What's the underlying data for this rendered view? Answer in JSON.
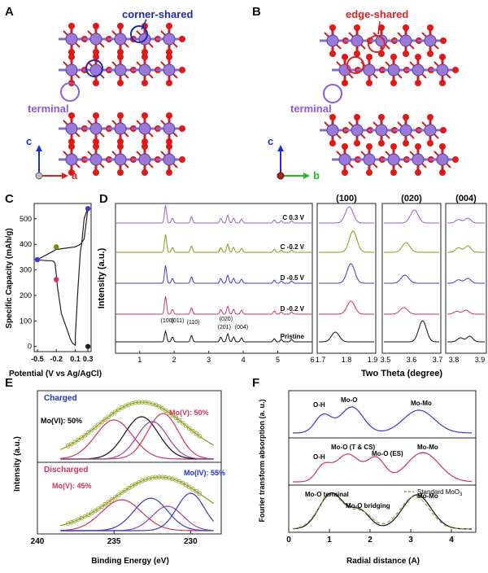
{
  "panels": {
    "A": {
      "letter": "A",
      "annotation": "corner-shared",
      "terminal": "terminal",
      "axis1": "c",
      "axis2": "a"
    },
    "B": {
      "letter": "B",
      "annotation": "edge-shared",
      "terminal": "terminal",
      "axis1": "c",
      "axis2": "b"
    },
    "C": {
      "letter": "C"
    },
    "D": {
      "letter": "D",
      "zoom_titles": [
        "(100)",
        "(020)",
        "(004)"
      ]
    },
    "E": {
      "letter": "E",
      "charged": "Charged",
      "discharged": "Discharged",
      "mo6": "Mo(VI): 50%",
      "mo5_top": "Mo(V): 50%",
      "mo5_bot": "Mo(V): 45%",
      "mo4": "Mo(IV): 55%"
    },
    "F": {
      "letter": "F",
      "oh1": "O-H",
      "moo1": "Mo-O",
      "momo1": "Mo-Mo",
      "oh2": "O-H",
      "moo_tcs": "Mo-O (T & CS)",
      "moo_es": "Mo-O (ES)",
      "momo2": "Mo-Mo",
      "moo_term": "Mo-O terminal",
      "moo_bridge": "Mo-O bridging",
      "momo3": "Mo-Mo",
      "std": "Standard MoO"
    }
  },
  "chart_data": [
    {
      "id": "C",
      "type": "line",
      "xlabel": "Potential (V vs Ag/AgCl)",
      "ylabel": "Specific Capacity (mAh/g)",
      "xticks": [
        "-0.5",
        "-0.2",
        "0.1",
        "0.3"
      ],
      "yticks": [
        "0",
        "100",
        "200",
        "300",
        "400",
        "500"
      ],
      "xlim": [
        -0.55,
        0.35
      ],
      "ylim": [
        -20,
        560
      ],
      "curve": [
        [
          -0.5,
          340
        ],
        [
          -0.44,
          338
        ],
        [
          -0.35,
          336
        ],
        [
          -0.28,
          336
        ],
        [
          -0.24,
          333
        ],
        [
          -0.22,
          325
        ],
        [
          -0.2,
          280
        ],
        [
          -0.18,
          230
        ],
        [
          -0.12,
          130
        ],
        [
          -0.02,
          60
        ],
        [
          0.02,
          30
        ],
        [
          0.06,
          12
        ],
        [
          0.1,
          5
        ],
        [
          0.1,
          40
        ],
        [
          0.14,
          220
        ],
        [
          0.18,
          370
        ],
        [
          0.2,
          400
        ],
        [
          0.22,
          450
        ],
        [
          0.24,
          500
        ],
        [
          0.28,
          530
        ],
        [
          0.3,
          540
        ],
        [
          0.24,
          420
        ],
        [
          0.18,
          400
        ],
        [
          0.1,
          390
        ],
        [
          -0.05,
          385
        ],
        [
          -0.2,
          380
        ],
        [
          -0.35,
          360
        ],
        [
          -0.5,
          340
        ]
      ],
      "markers": [
        {
          "x": -0.5,
          "y": 340,
          "color": "#3a3acc"
        },
        {
          "x": -0.2,
          "y": 262,
          "color": "#d2345a"
        },
        {
          "x": -0.2,
          "y": 390,
          "color": "#7a8a10"
        },
        {
          "x": 0.3,
          "y": 540,
          "color": "#3a3acc"
        },
        {
          "x": 0.3,
          "y": 0,
          "color": "#222222"
        }
      ]
    },
    {
      "id": "D",
      "type": "line",
      "xlabel": "Two Theta (degree)",
      "ylabel": "Intensity (a.u.)",
      "xticks": [
        "1",
        "2",
        "3",
        "4",
        "5",
        "6"
      ],
      "series": [
        {
          "name": "C  0.3 V",
          "color": "#9a5ccf"
        },
        {
          "name": "C -0.2 V",
          "color": "#8a9a12"
        },
        {
          "name": "D -0.5 V",
          "color": "#3a3acc"
        },
        {
          "name": "D -0.2 V",
          "color": "#d2345a"
        },
        {
          "name": "Pristine",
          "color": "#111111"
        }
      ],
      "peak_labels": [
        "(100)",
        "(011)",
        "(110)",
        "(020)",
        "(201)",
        "(004)"
      ],
      "zoom_xticks": [
        [
          "1.7",
          "1.8",
          "1.9"
        ],
        [
          "3.5",
          "3.6",
          "3.7"
        ],
        [
          "3.8",
          "3.9"
        ]
      ]
    },
    {
      "id": "E",
      "type": "line",
      "xlabel": "Binding Energy (eV)",
      "ylabel": "Intensity (a.u.)",
      "xticks": [
        "240",
        "235",
        "230"
      ]
    },
    {
      "id": "F",
      "type": "line",
      "xlabel": "Radial distance (A)",
      "ylabel": "Fourier transform absorption (a. u.)",
      "xticks": [
        "0",
        "1",
        "2",
        "3",
        "4"
      ]
    }
  ]
}
